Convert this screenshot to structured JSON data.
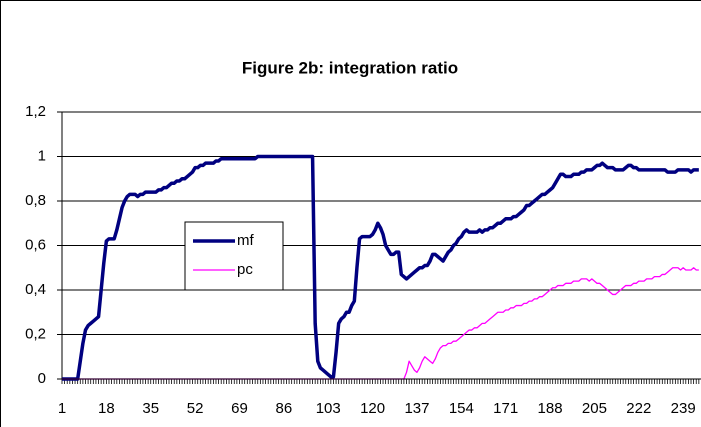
{
  "chart_data": {
    "type": "line",
    "title": "Figure 2b: integration ratio",
    "categories": [
      "1",
      null,
      null,
      null,
      null,
      null,
      null,
      null,
      null,
      null,
      null,
      null,
      null,
      null,
      null,
      null,
      null,
      "18",
      null,
      null,
      null,
      null,
      null,
      null,
      null,
      null,
      null,
      null,
      null,
      null,
      null,
      null,
      null,
      null,
      "35",
      null,
      null,
      null,
      null,
      null,
      null,
      null,
      null,
      null,
      null,
      null,
      null,
      null,
      null,
      null,
      null,
      "52",
      null,
      null,
      null,
      null,
      null,
      null,
      null,
      null,
      null,
      null,
      null,
      null,
      null,
      null,
      null,
      null,
      "69",
      null,
      null,
      null,
      null,
      null,
      null,
      null,
      null,
      null,
      null,
      null,
      null,
      null,
      null,
      null,
      null,
      "86",
      null,
      null,
      null,
      null,
      null,
      null,
      null,
      null,
      null,
      null,
      null,
      null,
      null,
      null,
      null,
      null,
      "103",
      null,
      null,
      null,
      null,
      null,
      null,
      null,
      null,
      null,
      null,
      null,
      null,
      null,
      null,
      null,
      null,
      "120",
      null,
      null,
      null,
      null,
      null,
      null,
      null,
      null,
      null,
      null,
      null,
      null,
      null,
      null,
      null,
      null,
      "137",
      null,
      null,
      null,
      null,
      null,
      null,
      null,
      null,
      null,
      null,
      null,
      null,
      null,
      null,
      null,
      null,
      "154",
      null,
      null,
      null,
      null,
      null,
      null,
      null,
      null,
      null,
      null,
      null,
      null,
      null,
      null,
      null,
      null,
      "171",
      null,
      null,
      null,
      null,
      null,
      null,
      null,
      null,
      null,
      null,
      null,
      null,
      null,
      null,
      null,
      null,
      "188",
      null,
      null,
      null,
      null,
      null,
      null,
      null,
      null,
      null,
      null,
      null,
      null,
      null,
      null,
      null,
      null,
      "205",
      null,
      null,
      null,
      null,
      null,
      null,
      null,
      null,
      null,
      null,
      null,
      null,
      null,
      null,
      null,
      null,
      "222",
      null,
      null,
      null,
      null,
      null,
      null,
      null,
      null,
      null,
      null,
      null,
      null,
      null,
      null,
      null,
      null,
      "239",
      null,
      null,
      null,
      null,
      null,
      null
    ],
    "series": [
      {
        "name": "mf",
        "color": "#000080",
        "width": 3.5,
        "values": [
          0,
          0,
          0,
          0,
          0,
          0,
          0,
          0.08,
          0.16,
          0.22,
          0.24,
          0.25,
          0.26,
          0.27,
          0.28,
          0.4,
          0.52,
          0.62,
          0.63,
          0.63,
          0.63,
          0.67,
          0.72,
          0.77,
          0.8,
          0.82,
          0.83,
          0.83,
          0.83,
          0.82,
          0.83,
          0.83,
          0.84,
          0.84,
          0.84,
          0.84,
          0.84,
          0.85,
          0.85,
          0.86,
          0.86,
          0.87,
          0.88,
          0.88,
          0.89,
          0.89,
          0.9,
          0.9,
          0.91,
          0.92,
          0.93,
          0.95,
          0.95,
          0.96,
          0.96,
          0.97,
          0.97,
          0.97,
          0.97,
          0.98,
          0.98,
          0.99,
          0.99,
          0.99,
          0.99,
          0.99,
          0.99,
          0.99,
          0.99,
          0.99,
          0.99,
          0.99,
          0.99,
          0.99,
          0.99,
          1,
          1,
          1,
          1,
          1,
          1,
          1,
          1,
          1,
          1,
          1,
          1,
          1,
          1,
          1,
          1,
          1,
          1,
          1,
          1,
          1,
          1,
          0.25,
          0.08,
          0.05,
          0.04,
          0.03,
          0.02,
          0.01,
          0.01,
          0.12,
          0.25,
          0.27,
          0.28,
          0.3,
          0.3,
          0.33,
          0.35,
          0.5,
          0.63,
          0.64,
          0.64,
          0.64,
          0.64,
          0.65,
          0.67,
          0.7,
          0.68,
          0.65,
          0.6,
          0.58,
          0.56,
          0.56,
          0.57,
          0.57,
          0.47,
          0.46,
          0.45,
          0.46,
          0.47,
          0.48,
          0.49,
          0.5,
          0.5,
          0.51,
          0.51,
          0.53,
          0.56,
          0.56,
          0.55,
          0.54,
          0.53,
          0.55,
          0.57,
          0.58,
          0.6,
          0.61,
          0.63,
          0.64,
          0.66,
          0.67,
          0.66,
          0.66,
          0.66,
          0.66,
          0.67,
          0.66,
          0.67,
          0.67,
          0.68,
          0.68,
          0.69,
          0.7,
          0.7,
          0.71,
          0.72,
          0.72,
          0.72,
          0.73,
          0.73,
          0.74,
          0.75,
          0.76,
          0.78,
          0.78,
          0.79,
          0.8,
          0.81,
          0.82,
          0.83,
          0.83,
          0.84,
          0.85,
          0.86,
          0.88,
          0.9,
          0.92,
          0.92,
          0.91,
          0.91,
          0.91,
          0.92,
          0.92,
          0.92,
          0.93,
          0.93,
          0.94,
          0.94,
          0.94,
          0.95,
          0.96,
          0.96,
          0.97,
          0.96,
          0.95,
          0.95,
          0.95,
          0.94,
          0.94,
          0.94,
          0.94,
          0.95,
          0.96,
          0.96,
          0.95,
          0.95,
          0.94,
          0.94,
          0.94,
          0.94,
          0.94,
          0.94,
          0.94,
          0.94,
          0.94,
          0.94,
          0.94,
          0.93,
          0.93,
          0.93,
          0.93,
          0.94,
          0.94,
          0.94,
          0.94,
          0.94,
          0.93,
          0.94,
          0.94,
          0.94
        ]
      },
      {
        "name": "pc",
        "color": "#ff00ff",
        "width": 1.3,
        "values": [
          0,
          0,
          0,
          0,
          0,
          0,
          0,
          0,
          0,
          0,
          0,
          0,
          0,
          0,
          0,
          0,
          0,
          0,
          0,
          0,
          0,
          0,
          0,
          0,
          0,
          0,
          0,
          0,
          0,
          0,
          0,
          0,
          0,
          0,
          0,
          0,
          0,
          0,
          0,
          0,
          0,
          0,
          0,
          0,
          0,
          0,
          0,
          0,
          0,
          0,
          0,
          0,
          0,
          0,
          0,
          0,
          0,
          0,
          0,
          0,
          0,
          0,
          0,
          0,
          0,
          0,
          0,
          0,
          0,
          0,
          0,
          0,
          0,
          0,
          0,
          0,
          0,
          0,
          0,
          0,
          0,
          0,
          0,
          0,
          0,
          0,
          0,
          0,
          0,
          0,
          0,
          0,
          0,
          0,
          0,
          0,
          0,
          0,
          0,
          0,
          0,
          0,
          0,
          0,
          0,
          0,
          0,
          0,
          0,
          0,
          0,
          0,
          0,
          0,
          0,
          0,
          0,
          0,
          0,
          0,
          0,
          0,
          0,
          0,
          0,
          0,
          0,
          0,
          0,
          0,
          0,
          0,
          0.03,
          0.08,
          0.06,
          0.04,
          0.03,
          0.05,
          0.08,
          0.1,
          0.09,
          0.08,
          0.07,
          0.09,
          0.12,
          0.14,
          0.15,
          0.15,
          0.16,
          0.16,
          0.17,
          0.17,
          0.18,
          0.19,
          0.2,
          0.21,
          0.22,
          0.22,
          0.23,
          0.23,
          0.24,
          0.25,
          0.25,
          0.26,
          0.27,
          0.28,
          0.29,
          0.3,
          0.3,
          0.3,
          0.31,
          0.31,
          0.32,
          0.32,
          0.33,
          0.33,
          0.33,
          0.34,
          0.34,
          0.35,
          0.35,
          0.36,
          0.36,
          0.37,
          0.37,
          0.38,
          0.39,
          0.4,
          0.41,
          0.41,
          0.42,
          0.42,
          0.42,
          0.43,
          0.43,
          0.43,
          0.44,
          0.44,
          0.44,
          0.45,
          0.45,
          0.45,
          0.44,
          0.45,
          0.44,
          0.43,
          0.43,
          0.42,
          0.41,
          0.4,
          0.39,
          0.38,
          0.38,
          0.39,
          0.4,
          0.41,
          0.42,
          0.42,
          0.42,
          0.43,
          0.43,
          0.44,
          0.44,
          0.44,
          0.45,
          0.45,
          0.45,
          0.46,
          0.46,
          0.46,
          0.47,
          0.47,
          0.48,
          0.49,
          0.5,
          0.5,
          0.5,
          0.49,
          0.5,
          0.49,
          0.49,
          0.49,
          0.5,
          0.49,
          0.49
        ]
      }
    ],
    "ylim": [
      0,
      1.2
    ],
    "yticks": [
      0,
      {
        "value": 0.2,
        "label": "0,2"
      },
      {
        "value": 0.4,
        "label": "0,4"
      },
      {
        "value": 0.6,
        "label": "0,6"
      },
      {
        "value": 0.8,
        "label": "0,8"
      },
      1,
      {
        "value": 1.2,
        "label": "1,2"
      }
    ],
    "grid": true,
    "legend": "center-left"
  }
}
